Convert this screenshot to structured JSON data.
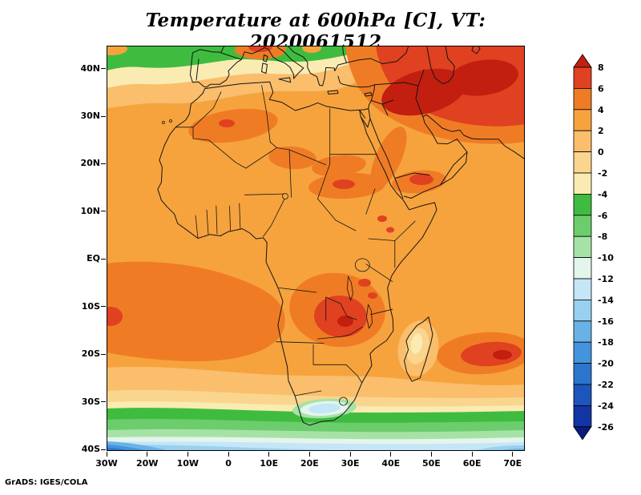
{
  "title": "Temperature at 600hPa [C], VT: 2020061512",
  "credit": "GrADS: IGES/COLA",
  "chart_data": {
    "type": "heatmap",
    "variable": "Temperature",
    "level": "600hPa",
    "units": "C",
    "valid_time": "2020061512",
    "title": "Temperature at 600hPa [C], VT: 2020061512",
    "region": "Africa, southern Europe, Middle East and surrounding oceans",
    "grid": "off",
    "x_axis": {
      "range_deg": [
        -30,
        73
      ],
      "ticks": [
        {
          "deg": -30,
          "label": "30W"
        },
        {
          "deg": -20,
          "label": "20W"
        },
        {
          "deg": -10,
          "label": "10W"
        },
        {
          "deg": 0,
          "label": "0"
        },
        {
          "deg": 10,
          "label": "10E"
        },
        {
          "deg": 20,
          "label": "20E"
        },
        {
          "deg": 30,
          "label": "30E"
        },
        {
          "deg": 40,
          "label": "40E"
        },
        {
          "deg": 50,
          "label": "50E"
        },
        {
          "deg": 60,
          "label": "60E"
        },
        {
          "deg": 70,
          "label": "70E"
        }
      ]
    },
    "y_axis": {
      "range_deg": [
        -40.3,
        44.8
      ],
      "ticks": [
        {
          "deg": 40,
          "label": "40N"
        },
        {
          "deg": 30,
          "label": "30N"
        },
        {
          "deg": 20,
          "label": "20N"
        },
        {
          "deg": 10,
          "label": "10N"
        },
        {
          "deg": 0,
          "label": "EQ"
        },
        {
          "deg": -10,
          "label": "10S"
        },
        {
          "deg": -20,
          "label": "20S"
        },
        {
          "deg": -30,
          "label": "30S"
        },
        {
          "deg": -40,
          "label": "40S"
        }
      ]
    },
    "colorbar": {
      "orientation": "vertical",
      "position": "right",
      "levels": [
        8,
        6,
        4,
        2,
        0,
        -2,
        -4,
        -6,
        -8,
        -10,
        -12,
        -14,
        -16,
        -18,
        -20,
        -22,
        -24,
        -26
      ],
      "colors": [
        "#C21F10",
        "#E04120",
        "#EF7C24",
        "#F6A33E",
        "#FABE6C",
        "#FAD58D",
        "#FAEBB2",
        "#3FBC3F",
        "#6CCD6C",
        "#A6E2A6",
        "#E4F5EC",
        "#C4E6F6",
        "#98D0F0",
        "#6AB2E6",
        "#4394DC",
        "#2B75CE",
        "#1C55BC",
        "#1334A4",
        "#0A1B7E"
      ]
    },
    "features": [
      {
        "region": "Middle East / Turkey-Iraq-Iran (28-45N, 35-65E)",
        "value_c": "6 to above 8",
        "shade": "dark red maximum"
      },
      {
        "region": "Most of tropical Africa and adjacent oceans",
        "value_c": "2 to 4",
        "shade": "orange background"
      },
      {
        "region": "Sahara patches (20-30N, 10W-20E) and Sudan/Sahel (10-20N)",
        "value_c": "4 to 6",
        "shade": "deep orange"
      },
      {
        "region": "Red Sea and southern Arabia / Horn of Africa",
        "value_c": "4 to 6, local 6-8",
        "shade": "orange-red"
      },
      {
        "region": "Central southern Africa, Zambia/DR Congo (5S-18S, 20-35E)",
        "value_c": "4 to above 8 in core",
        "shade": "red blob"
      },
      {
        "region": "SW Indian Ocean east of Madagascar (15S-25S, 50-73E)",
        "value_c": "4 to 8",
        "shade": "red blob"
      },
      {
        "region": "South tropical Atlantic (3S-20S, west of 10E)",
        "value_c": "4 to 6",
        "shade": "deep orange band"
      },
      {
        "region": "Madagascar",
        "value_c": "-2 to 2",
        "shade": "pale yellow/peach pocket"
      },
      {
        "region": "Mediterranean and 40-45N northern edge",
        "value_c": "-6 to -2",
        "shade": "green/yellow bands"
      },
      {
        "region": "Mid-latitude band 28S-35S",
        "value_c": "-8 to -4",
        "shade": "green band"
      },
      {
        "region": "South Africa interior (29S-32S, 20-28E)",
        "value_c": "-12 to -10",
        "shade": "pale blue pocket"
      },
      {
        "region": "Southern Ocean south of 35S",
        "value_c": "-16 to -10",
        "shade": "pale/light blue"
      },
      {
        "region": "Far southwest corner (30W-20W, 37S-40S)",
        "value_c": "-24 to -16",
        "shade": "deep blue"
      }
    ]
  }
}
